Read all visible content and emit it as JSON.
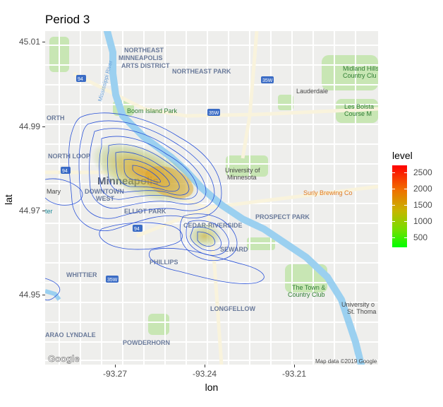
{
  "title": "Period 3",
  "x_axis": {
    "label": "lon",
    "ticks": [
      "-93.27",
      "-93.24",
      "-93.21"
    ]
  },
  "y_axis": {
    "label": "lat",
    "ticks": [
      "45.01",
      "44.99",
      "44.97",
      "44.95"
    ]
  },
  "legend": {
    "title": "level",
    "ticks": [
      "2500",
      "2000",
      "1500",
      "1000",
      "500"
    ]
  },
  "map": {
    "attribution_left": "Google",
    "attribution_right": "Map data ©2019 Google",
    "places": {
      "northeast_minneapolis": "NORTHEAST MINNEAPOLIS ARTS DISTRICT",
      "northeast_park": "NORTHEAST PARK",
      "boom_island": "Boom Island Park",
      "midland_hills": "Midland Hills Country Club",
      "lauderdale": "Lauderdale",
      "les_bolstad": "Les Bolstad Course",
      "north_loop": "NORTH LOOP",
      "minneapolis": "Minneapolis",
      "downtown_west": "DOWNTOWN WEST",
      "university": "University of Minnesota",
      "surly": "Surly Brewing Co",
      "elliot_park": "ELLIOT PARK",
      "cedar_riverside": "CEDAR-RIVERSIDE",
      "prospect_park": "PROSPECT PARK",
      "seward": "SEWARD",
      "phillips": "PHILLIPS",
      "whittier": "WHITTIER",
      "town_country": "The Town & Country Club",
      "university_st_thomas": "University of St. Thomas",
      "longfellow": "LONGFELLOW",
      "lyndale": "LYNDALE",
      "powderhorn": "POWDERHORN",
      "mississippi": "Mississippi River",
      "mary": "Mary",
      "north": "ORTH",
      "ter": "ter",
      "arao": "ARAO"
    }
  },
  "chart_data": {
    "type": "density_contour_map",
    "title": "Period 3",
    "xlabel": "lon",
    "ylabel": "lat",
    "xlim": [
      -93.285,
      -93.195
    ],
    "ylim": [
      44.943,
      45.013
    ],
    "legend_title": "level",
    "level_range": [
      0,
      2800
    ],
    "colors": {
      "low": "#00ff00",
      "high": "#ff0000",
      "contour": "#2a52d8"
    },
    "hotspots": [
      {
        "lon": -93.263,
        "lat": 44.977,
        "peak": 2700
      },
      {
        "lon": -93.24,
        "lat": 44.964,
        "peak": 1300
      }
    ]
  }
}
